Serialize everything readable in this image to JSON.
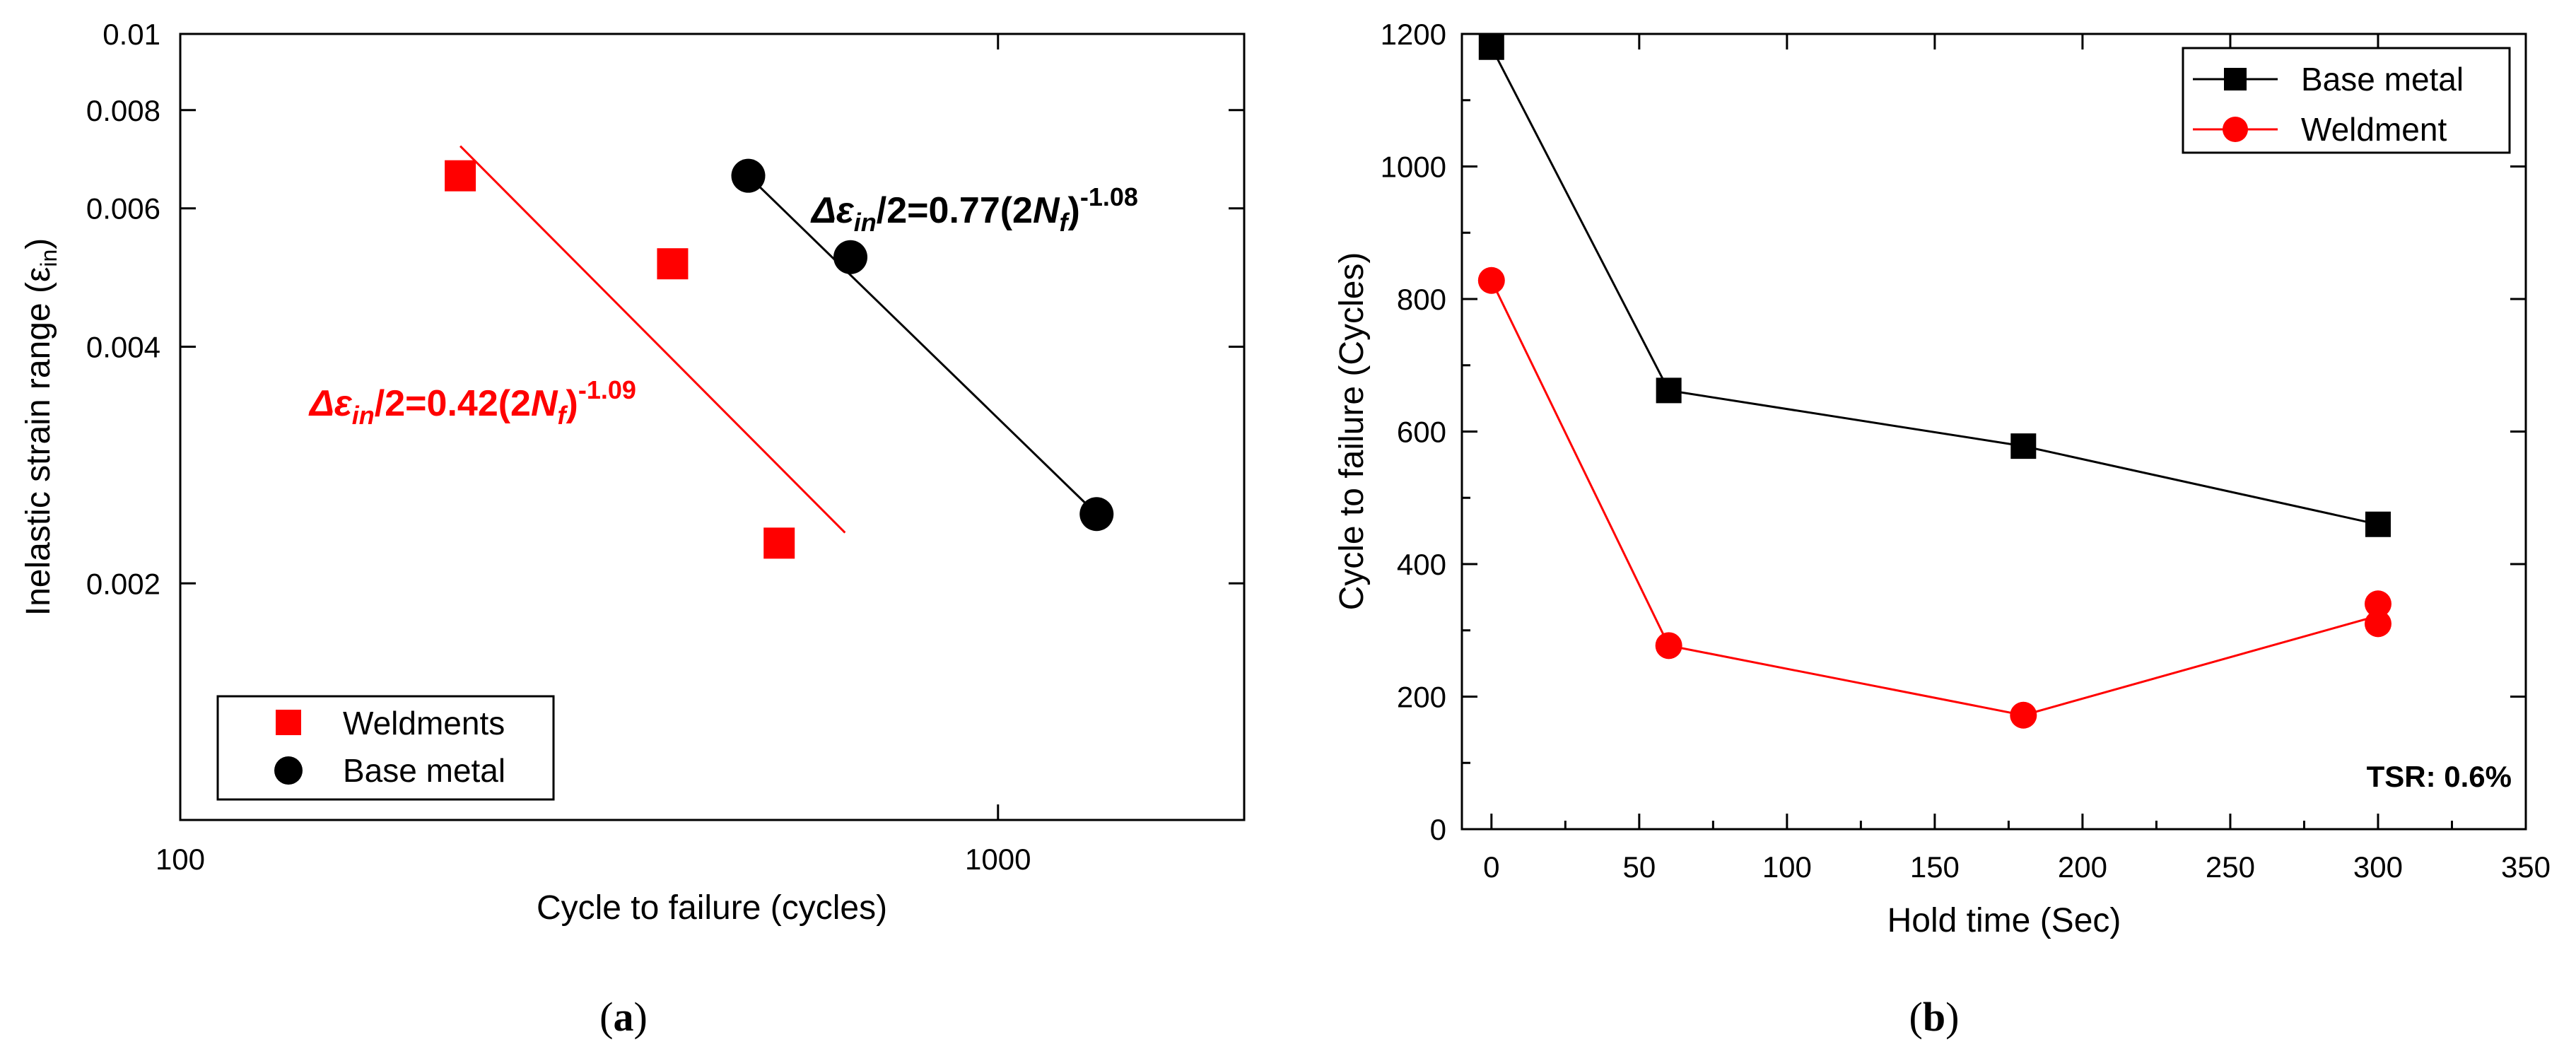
{
  "chart_data": [
    {
      "panel_label": "(a)",
      "panel_label_parts": [
        "(",
        "a",
        ")"
      ],
      "type": "scatter",
      "xscale": "log",
      "yscale": "log",
      "xlabel": "Cycle to failure (cycles)",
      "ylabel": "Inelastic strain range (ε",
      "ylabel_sub": "in",
      "ylabel_close": ")",
      "xlim": [
        100,
        2000
      ],
      "ylim": [
        0.001,
        0.01
      ],
      "xticks": [
        {
          "value": 100,
          "label": "100"
        },
        {
          "value": 1000,
          "label": "1000"
        }
      ],
      "yticks": [
        {
          "value": 0.002,
          "label": "0.002"
        },
        {
          "value": 0.004,
          "label": "0.004"
        },
        {
          "value": 0.006,
          "label": "0.006"
        },
        {
          "value": 0.008,
          "label": "0.008"
        },
        {
          "value": 0.01,
          "label": "0.01"
        }
      ],
      "series": [
        {
          "name": "Weldments",
          "color": "#ff0000",
          "marker": "square",
          "points": [
            [
              220,
              0.0066
            ],
            [
              400,
              0.0051
            ],
            [
              540,
              0.00225
            ]
          ],
          "fit": {
            "x": [
              220,
              650
            ],
            "y": [
              0.0072,
              0.00232
            ]
          },
          "equation": {
            "prefix": "Δε",
            "sub": "in",
            "mid": "/2=0.42(2",
            "n": "N",
            "nsub": "f",
            "close": ")",
            "exp": "-1.09"
          }
        },
        {
          "name": "Base metal",
          "color": "#000000",
          "marker": "circle",
          "points": [
            [
              495,
              0.0066
            ],
            [
              660,
              0.0052
            ],
            [
              1320,
              0.00245
            ]
          ],
          "fit": {
            "x": [
              495,
              1320
            ],
            "y": [
              0.0066,
              0.00245
            ]
          },
          "equation": {
            "prefix": "Δε",
            "sub": "in",
            "mid": "/2=0.77(2",
            "n": "N",
            "nsub": "f",
            "close": ")",
            "exp": "-1.08"
          }
        }
      ],
      "legend": {
        "placement": "bottom-left",
        "entries": [
          "Weldments",
          "Base metal"
        ]
      }
    },
    {
      "panel_label": "(b)",
      "panel_label_parts": [
        "(",
        "b",
        ")"
      ],
      "type": "line",
      "xlabel": "Hold time (Sec)",
      "ylabel": "Cycle to failure (Cycles)",
      "xlim": [
        -10,
        350
      ],
      "ylim": [
        0,
        1200
      ],
      "xticks": [
        {
          "value": 0,
          "label": "0"
        },
        {
          "value": 50,
          "label": "50"
        },
        {
          "value": 100,
          "label": "100"
        },
        {
          "value": 150,
          "label": "150"
        },
        {
          "value": 200,
          "label": "200"
        },
        {
          "value": 250,
          "label": "250"
        },
        {
          "value": 300,
          "label": "300"
        },
        {
          "value": 350,
          "label": "350"
        }
      ],
      "yticks": [
        {
          "value": 0,
          "label": "0"
        },
        {
          "value": 200,
          "label": "200"
        },
        {
          "value": 400,
          "label": "400"
        },
        {
          "value": 600,
          "label": "600"
        },
        {
          "value": 800,
          "label": "800"
        },
        {
          "value": 1000,
          "label": "1000"
        },
        {
          "value": 1200,
          "label": "1200"
        }
      ],
      "series": [
        {
          "name": "Base metal",
          "color": "#000000",
          "marker": "square",
          "line": [
            [
              0,
              1180
            ],
            [
              60,
              662
            ],
            [
              180,
              578
            ],
            [
              300,
              460
            ]
          ],
          "points": [
            [
              0,
              1180
            ],
            [
              60,
              662
            ],
            [
              180,
              578
            ],
            [
              300,
              460
            ]
          ]
        },
        {
          "name": "Weldment",
          "color": "#ff0000",
          "marker": "circle",
          "line": [
            [
              0,
              828
            ],
            [
              60,
              277
            ],
            [
              180,
              172
            ],
            [
              300,
              322
            ]
          ],
          "points": [
            [
              0,
              828
            ],
            [
              60,
              277
            ],
            [
              180,
              172
            ],
            [
              300,
              310
            ],
            [
              300,
              340
            ]
          ]
        }
      ],
      "legend": {
        "placement": "top-right",
        "entries": [
          "Base metal",
          "Weldment"
        ]
      },
      "annotation": "TSR: 0.6%"
    }
  ]
}
